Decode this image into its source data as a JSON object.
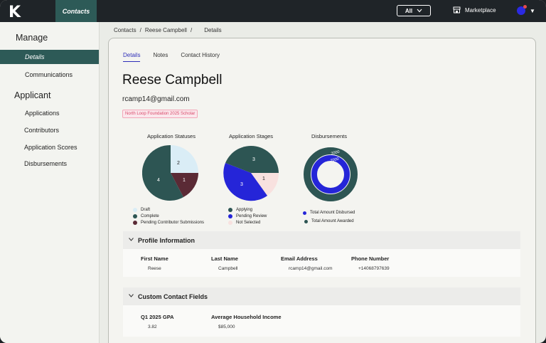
{
  "topbar": {
    "logo": "K",
    "nav_contacts": "Contacts",
    "all_select": "All",
    "marketplace": "Marketplace"
  },
  "sidebar": {
    "manage_heading": "Manage",
    "manage_items": [
      {
        "label": "Details",
        "active": true
      },
      {
        "label": "Communications",
        "active": false
      }
    ],
    "applicant_heading": "Applicant",
    "applicant_items": [
      {
        "label": "Applications"
      },
      {
        "label": "Contributors"
      },
      {
        "label": "Application Scores"
      },
      {
        "label": "Disbursements"
      }
    ]
  },
  "breadcrumb": {
    "items": [
      "Contacts",
      "/",
      "Reese Campbell",
      "/",
      "Details"
    ]
  },
  "tabs": [
    {
      "label": "Details",
      "active": true
    },
    {
      "label": "Notes",
      "active": false
    },
    {
      "label": "Contact History",
      "active": false
    }
  ],
  "contact": {
    "name": "Reese Campbell",
    "email": "rcamp14@gmail.com",
    "badge": "North Loop Foundation 2025 Scholar"
  },
  "charts": {
    "statuses": {
      "title": "Application Statuses",
      "slices": [
        {
          "label": "Draft",
          "value": 2,
          "color": "#daedf6"
        },
        {
          "label": "Pending Contributor Submissions",
          "value": 1,
          "color": "#5a2a35"
        },
        {
          "label": "Complete",
          "value": 4,
          "color": "#2d5553"
        }
      ],
      "legend": [
        {
          "label": "Draft",
          "color": "#daedf6"
        },
        {
          "label": "Complete",
          "color": "#2d5553"
        },
        {
          "label": "Pending Contributor Submissions",
          "color": "#5a2a35"
        }
      ]
    },
    "stages": {
      "title": "Application Stages",
      "slices": [
        {
          "label": "Applying",
          "value": 3,
          "color": "#2d5553"
        },
        {
          "label": "Not Selected",
          "value": 1,
          "color": "#f8e1df"
        },
        {
          "label": "Pending Review",
          "value": 3,
          "color": "#2525d8"
        }
      ],
      "legend": [
        {
          "label": "Applying",
          "color": "#2d5553"
        },
        {
          "label": "Pending Review",
          "color": "#2525d8"
        },
        {
          "label": "Not Selected",
          "color": "#f8e1df"
        }
      ]
    },
    "disbursements": {
      "title": "Disbursements",
      "outer_label": "2000",
      "inner_label": "2000",
      "legend": [
        {
          "label": "Total Amount Disbursed",
          "color": "#2525d8"
        },
        {
          "label": "Total Amount Awarded",
          "color": "#2d5553"
        }
      ]
    }
  },
  "profile": {
    "heading": "Profile Information",
    "fields": [
      {
        "label": "First Name",
        "value": "Reese"
      },
      {
        "label": "Last Name",
        "value": "Campbell"
      },
      {
        "label": "Email Address",
        "value": "rcamp14@gmail.com"
      },
      {
        "label": "Phone Number",
        "value": "+14068797639"
      }
    ]
  },
  "custom": {
    "heading": "Custom Contact Fields",
    "fields": [
      {
        "label": "Q1 2025 GPA",
        "value": "3.82"
      },
      {
        "label": "Average Household Income",
        "value": "$85,000"
      }
    ]
  }
}
